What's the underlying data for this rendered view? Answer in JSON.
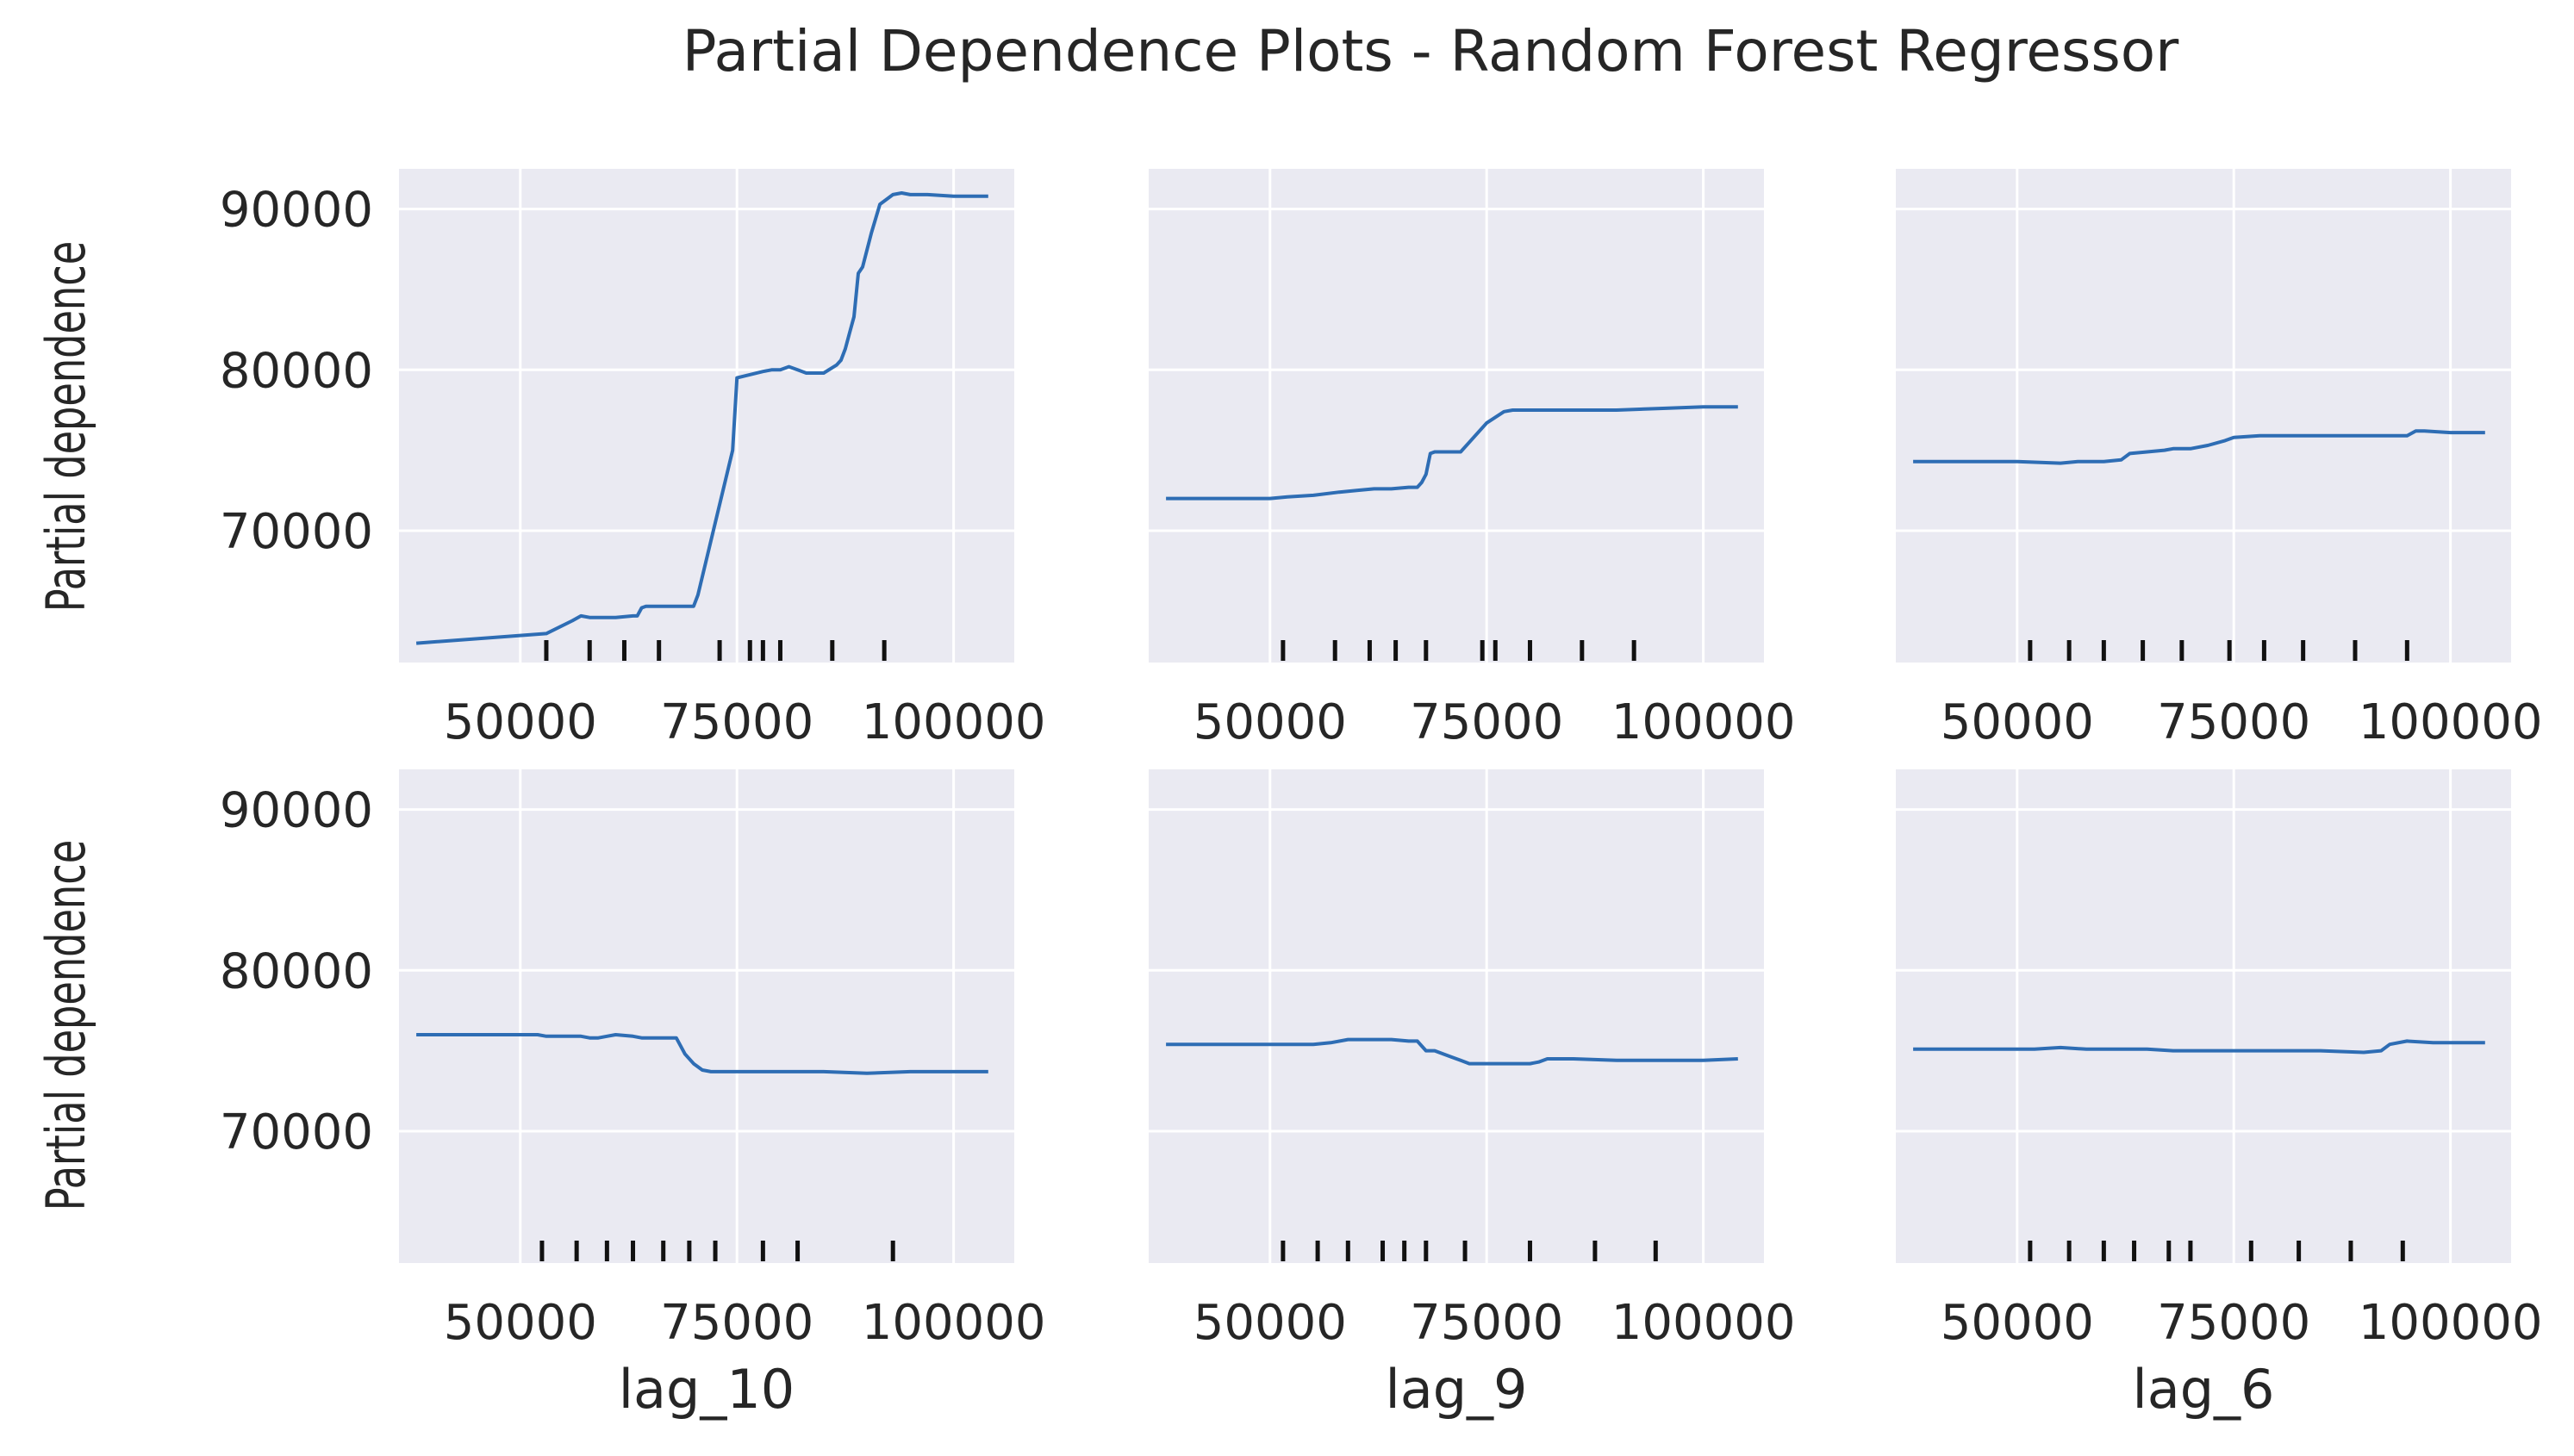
{
  "chart_data": {
    "type": "line",
    "title": "Partial Dependence Plots - Random Forest Regressor",
    "ylabel": "Partial dependence",
    "ylim": [
      61800,
      92500
    ],
    "yticks": [
      70000,
      80000,
      90000
    ],
    "xlim": [
      36000,
      107000
    ],
    "xticks": [
      50000,
      75000,
      100000
    ],
    "grid": true,
    "subplots": [
      {
        "xlabel": "",
        "feature": "lag_10",
        "x": [
          38000,
          53000,
          56000,
          57000,
          58000,
          60500,
          61000,
          63000,
          63500,
          64000,
          64500,
          65500,
          69500,
          70000,
          70500,
          74500,
          75000,
          78000,
          79000,
          80000,
          81000,
          82000,
          83000,
          85000,
          86500,
          87000,
          87500,
          88000,
          88500,
          89000,
          89500,
          90500,
          91500,
          93000,
          94000,
          95000,
          97000,
          100000,
          104000
        ],
        "y": [
          63000,
          63600,
          64400,
          64700,
          64600,
          64600,
          64600,
          64700,
          64700,
          65200,
          65300,
          65300,
          65300,
          65300,
          66000,
          75000,
          79500,
          79900,
          80000,
          80000,
          80200,
          80000,
          79800,
          79800,
          80300,
          80600,
          81300,
          82300,
          83300,
          86000,
          86400,
          88500,
          90300,
          90900,
          91000,
          90900,
          90900,
          90800,
          90800
        ],
        "deciles": [
          53000,
          58000,
          62000,
          66000,
          73000,
          76500,
          78000,
          80000,
          86000,
          92000
        ]
      },
      {
        "xlabel": "",
        "feature": "lag_9",
        "x": [
          38000,
          45000,
          50000,
          52000,
          55000,
          58000,
          60000,
          62000,
          64000,
          66000,
          67000,
          67500,
          68000,
          68500,
          69000,
          72000,
          73000,
          75000,
          77000,
          78000,
          80000,
          85000,
          90000,
          95000,
          100000,
          104000
        ],
        "y": [
          72000,
          72000,
          72000,
          72100,
          72200,
          72400,
          72500,
          72600,
          72600,
          72700,
          72700,
          73000,
          73500,
          74800,
          74900,
          74900,
          75500,
          76700,
          77400,
          77500,
          77500,
          77500,
          77500,
          77600,
          77700,
          77700
        ],
        "deciles": [
          51500,
          57500,
          61500,
          64500,
          68000,
          74500,
          76000,
          80000,
          86000,
          92000
        ]
      },
      {
        "xlabel": "",
        "feature": "lag_6",
        "x": [
          38000,
          45000,
          50000,
          55000,
          57000,
          60000,
          62000,
          63000,
          65000,
          67000,
          68000,
          70000,
          72000,
          74000,
          75000,
          78000,
          80000,
          85000,
          90000,
          95000,
          96000,
          97000,
          100000,
          104000
        ],
        "y": [
          74300,
          74300,
          74300,
          74200,
          74300,
          74300,
          74400,
          74800,
          74900,
          75000,
          75100,
          75100,
          75300,
          75600,
          75800,
          75900,
          75900,
          75900,
          75900,
          75900,
          76200,
          76200,
          76100,
          76100
        ],
        "deciles": [
          51500,
          56000,
          60000,
          64500,
          69000,
          74500,
          78500,
          83000,
          89000,
          95000
        ]
      },
      {
        "xlabel": "lag_10",
        "feature": "lag_10",
        "x": [
          38000,
          45000,
          50000,
          52000,
          53000,
          55000,
          57000,
          58000,
          59000,
          60000,
          61000,
          63000,
          64000,
          66000,
          67000,
          68000,
          69000,
          70000,
          71000,
          72000,
          75000,
          80000,
          85000,
          90000,
          95000,
          100000,
          104000
        ],
        "y": [
          76000,
          76000,
          76000,
          76000,
          75900,
          75900,
          75900,
          75800,
          75800,
          75900,
          76000,
          75900,
          75800,
          75800,
          75800,
          75800,
          74800,
          74200,
          73800,
          73700,
          73700,
          73700,
          73700,
          73600,
          73700,
          73700,
          73700
        ],
        "deciles": [
          52500,
          56500,
          60000,
          63000,
          66500,
          69500,
          72500,
          78000,
          82000,
          93000
        ]
      },
      {
        "xlabel": "lag_9",
        "feature": "lag_9",
        "x": [
          38000,
          45000,
          50000,
          55000,
          57000,
          59000,
          60000,
          62000,
          64000,
          66000,
          67000,
          68000,
          69000,
          70000,
          71000,
          72000,
          73000,
          75000,
          80000,
          81000,
          82000,
          85000,
          90000,
          95000,
          100000,
          104000
        ],
        "y": [
          75400,
          75400,
          75400,
          75400,
          75500,
          75700,
          75700,
          75700,
          75700,
          75600,
          75600,
          75000,
          75000,
          74800,
          74600,
          74400,
          74200,
          74200,
          74200,
          74300,
          74500,
          74500,
          74400,
          74400,
          74400,
          74500
        ],
        "deciles": [
          51500,
          55500,
          59000,
          63000,
          65500,
          68000,
          72500,
          80000,
          87500,
          94500
        ]
      },
      {
        "xlabel": "lag_6",
        "feature": "lag_6",
        "x": [
          38000,
          45000,
          50000,
          52000,
          55000,
          58000,
          60000,
          65000,
          68000,
          70000,
          75000,
          80000,
          85000,
          90000,
          92000,
          93000,
          95000,
          98000,
          100000,
          104000
        ],
        "y": [
          75100,
          75100,
          75100,
          75100,
          75200,
          75100,
          75100,
          75100,
          75000,
          75000,
          75000,
          75000,
          75000,
          74900,
          75000,
          75400,
          75600,
          75500,
          75500,
          75500
        ],
        "deciles": [
          51500,
          56000,
          60000,
          63500,
          67500,
          70000,
          77000,
          82500,
          88500,
          94500
        ]
      }
    ]
  }
}
